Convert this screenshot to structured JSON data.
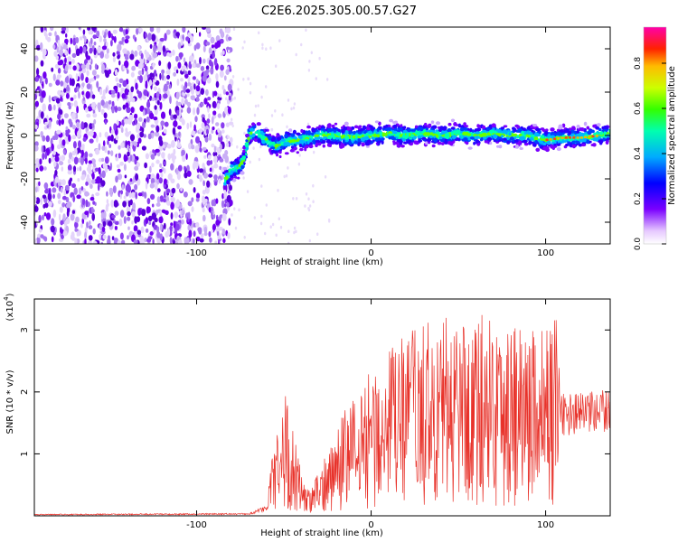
{
  "title": "C2E6.2025.305.00.57.G27",
  "colors": {
    "signal": "#e8322a",
    "background_dots": "#a574f0",
    "frame": "#000000"
  },
  "chart_data": [
    {
      "type": "heatmap",
      "name": "spectrogram",
      "title": "C2E6.2025.305.00.57.G27",
      "xlabel": "Height of straight line (km)",
      "ylabel": "Frequency (Hz)",
      "xlim": [
        -193,
        137
      ],
      "ylim": [
        -50,
        50
      ],
      "x_ticks": [
        -100,
        0,
        100
      ],
      "y_ticks": [
        -40,
        -20,
        0,
        20,
        40
      ],
      "noise_region_x": [
        -193,
        -84
      ],
      "signal_track": {
        "x": [
          -84,
          -80,
          -76,
          -73,
          -70,
          -66,
          -60,
          -55,
          -50,
          -40,
          -30,
          -20,
          -10,
          0,
          10,
          20,
          30,
          40,
          50,
          60,
          70,
          80,
          90,
          100,
          110,
          120,
          130,
          137
        ],
        "y": [
          -21,
          -16,
          -15,
          -11,
          0,
          2,
          -2,
          -5,
          -3,
          -2,
          0,
          0,
          -1,
          0,
          1,
          0,
          1,
          0,
          1,
          0,
          1,
          0,
          0,
          -2,
          -1,
          -1,
          0,
          1
        ]
      },
      "colorbar": {
        "label": "Normalized spectral amplitude",
        "min": 0.0,
        "max": 0.96,
        "ticks": [
          "0.0",
          "0.2",
          "0.4",
          "0.6",
          "0.8"
        ],
        "tick_values": [
          0.0,
          0.2,
          0.4,
          0.6,
          0.8
        ]
      }
    },
    {
      "type": "line",
      "name": "snr",
      "xlabel": "Height of straight line (km)",
      "ylabel": "SNR (10 * v/v)",
      "y_exponent_label": "(x10",
      "y_exponent": "4",
      "xlim": [
        -193,
        137
      ],
      "ylim": [
        0,
        3.5
      ],
      "x_ticks": [
        -100,
        0,
        100
      ],
      "y_ticks": [
        1,
        2,
        3
      ],
      "envelope_keypoints": {
        "x": [
          -193,
          -70,
          -60,
          -54,
          -50,
          -44,
          -36,
          -30,
          -20,
          -10,
          0,
          20,
          40,
          60,
          80,
          100,
          108,
          115,
          125,
          137
        ],
        "y": [
          0.02,
          0.03,
          0.12,
          0.8,
          1.05,
          0.65,
          0.2,
          0.35,
          0.75,
          1.0,
          1.2,
          1.5,
          1.6,
          1.65,
          1.6,
          1.55,
          1.62,
          1.65,
          1.65,
          1.7
        ]
      }
    }
  ]
}
